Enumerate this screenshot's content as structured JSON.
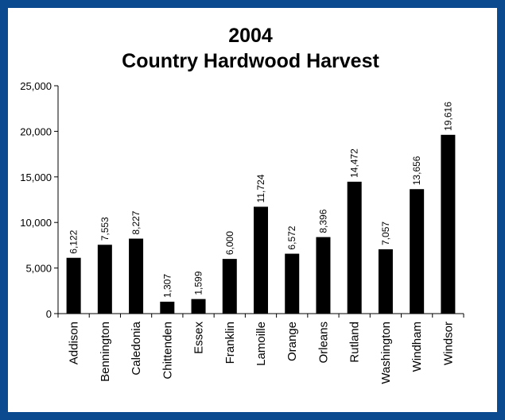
{
  "chart_data": {
    "type": "bar",
    "title": "2004",
    "subtitle": "Country Hardwood Harvest",
    "xlabel": "",
    "ylabel": "",
    "categories": [
      "Addison",
      "Bennington",
      "Caledonia",
      "Chittenden",
      "Essex",
      "Franklin",
      "Lamoille",
      "Orange",
      "Orleans",
      "Rutland",
      "Washington",
      "Windham",
      "Windsor"
    ],
    "values": [
      6122,
      7553,
      8227,
      1307,
      1599,
      6000,
      11724,
      6572,
      8396,
      14472,
      7057,
      13656,
      19616
    ],
    "value_labels": [
      "6,122",
      "7,553",
      "8,227",
      "1,307",
      "1,599",
      "6,000",
      "11,724",
      "6,572",
      "8,396",
      "14,472",
      "7,057",
      "13,656",
      "19,616"
    ],
    "yticks": [
      0,
      5000,
      10000,
      15000,
      20000,
      25000
    ],
    "ytick_labels": [
      "0",
      "5,000",
      "10,000",
      "15,000",
      "20,000",
      "25,000"
    ],
    "ylim": [
      0,
      25000
    ],
    "grid": false,
    "legend": "none",
    "bar_color": "#000000",
    "frame_color": "#0b4a8f"
  }
}
